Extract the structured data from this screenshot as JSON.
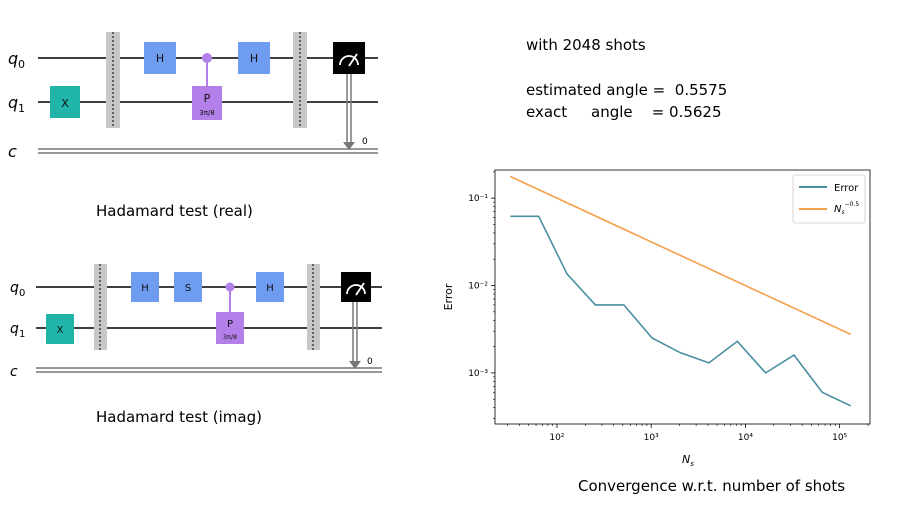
{
  "circuits": [
    {
      "caption": "Hadamard test (real)",
      "wires": [
        "q0",
        "q1",
        "c"
      ],
      "gates": [
        {
          "name": "x-gate",
          "label": "X",
          "color": "#21b5aa"
        },
        {
          "name": "h-gate-1",
          "label": "H",
          "color": "#6e9cf0"
        },
        {
          "name": "p-gate",
          "label": "P",
          "param": "3π/8",
          "color": "#b37fe8"
        },
        {
          "name": "h-gate-2",
          "label": "H",
          "color": "#6e9cf0"
        }
      ],
      "classical_bit": "0"
    },
    {
      "caption": "Hadamard test (imag)",
      "wires": [
        "q0",
        "q1",
        "c"
      ],
      "gates": [
        {
          "name": "x-gate",
          "label": "X",
          "color": "#21b5aa"
        },
        {
          "name": "h-gate-1",
          "label": "H",
          "color": "#6e9cf0"
        },
        {
          "name": "s-gate",
          "label": "S",
          "color": "#6e9cf0"
        },
        {
          "name": "p-gate",
          "label": "P",
          "param": "3π/8",
          "color": "#b37fe8"
        },
        {
          "name": "h-gate-2",
          "label": "H",
          "color": "#6e9cf0"
        }
      ],
      "classical_bit": "0"
    }
  ],
  "results": {
    "shots_text": "with 2048 shots",
    "estimated_text": "estimated angle =  0.5575",
    "exact_text": "exact     angle    = 0.5625"
  },
  "chart_caption": "Convergence w.r.t. number of shots",
  "chart_data": {
    "type": "line",
    "scale": "log-log",
    "xlabel": "Ns",
    "ylabel": "Error",
    "xlim": [
      22,
      210000
    ],
    "ylim": [
      0.00026,
      0.21
    ],
    "x_ticks": [
      100,
      1000,
      10000,
      100000
    ],
    "x_tick_labels": [
      "10²",
      "10³",
      "10⁴",
      "10⁵"
    ],
    "y_ticks": [
      0.001,
      0.01,
      0.1
    ],
    "y_tick_labels": [
      "10⁻³",
      "10⁻²",
      "10⁻¹"
    ],
    "legend_position": "top-right",
    "series": [
      {
        "name": "Error",
        "color": "#4a8fa0",
        "x": [
          32,
          64,
          128,
          256,
          512,
          1024,
          2048,
          4096,
          8192,
          16384,
          32768,
          65536,
          131072
        ],
        "y": [
          0.062,
          0.062,
          0.0135,
          0.006,
          0.006,
          0.0025,
          0.0017,
          0.0013,
          0.0023,
          0.001,
          0.0016,
          0.0006,
          0.00042
        ]
      },
      {
        "name": "Ns^-0.5",
        "color": "#f5a04a",
        "x": [
          32,
          131072
        ],
        "y": [
          0.1768,
          0.00276
        ]
      }
    ]
  }
}
